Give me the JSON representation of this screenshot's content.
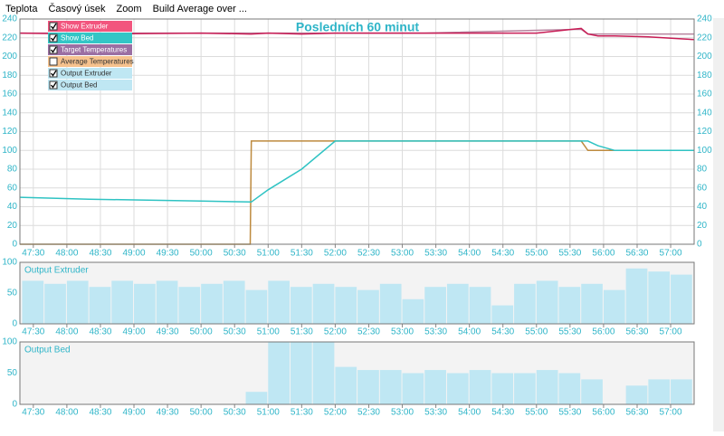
{
  "menu": [
    "Teplota",
    "Časový úsek",
    "Zoom",
    "Build Average over ..."
  ],
  "legend": [
    {
      "label": "Show Extruder",
      "color": "#f2557e",
      "checked": true
    },
    {
      "label": "Show Bed",
      "color": "#33c6c6",
      "checked": true
    },
    {
      "label": "Target Temperatures",
      "color": "#9b6fa3",
      "checked": true
    },
    {
      "label": "Average Temperatures",
      "color": "#f6c28e",
      "checked": false
    },
    {
      "label": "Output Extruder",
      "color": "#bfe7f3",
      "checked": true
    },
    {
      "label": "Output Bed",
      "color": "#bfe7f3",
      "checked": true
    }
  ],
  "chart_data": [
    {
      "type": "line",
      "title": "Posledních 60 minut",
      "x": [
        2838,
        2900,
        3000,
        3044,
        3045,
        3060,
        3090,
        3120,
        3200,
        3300,
        3340,
        3346,
        3355,
        3370,
        3400,
        3441
      ],
      "series": [
        {
          "color": "#b8849f",
          "values": [
            225,
            225,
            225,
            225,
            225,
            225,
            225,
            225,
            225,
            228,
            229,
            224,
            224,
            224,
            224,
            224
          ]
        },
        {
          "color": "#c81c55",
          "values": [
            225,
            224,
            225,
            224,
            224,
            225,
            224,
            225,
            225,
            225,
            230,
            224,
            222,
            222,
            221,
            218
          ]
        },
        {
          "color": "#bd8a3e",
          "values": [
            0,
            0,
            0,
            0,
            110,
            110,
            110,
            110,
            110,
            110,
            110,
            100,
            100,
            100,
            100,
            100
          ]
        },
        {
          "color": "#2fc3c3",
          "values": [
            50,
            48,
            46,
            45,
            45,
            58,
            80,
            110,
            110,
            110,
            110,
            110,
            105,
            100,
            100,
            100
          ]
        }
      ],
      "xlim": [
        2838,
        3441
      ],
      "xticks": [
        {
          "value": 2850,
          "label": "47:30"
        },
        {
          "value": 2880,
          "label": "48:00"
        },
        {
          "value": 2910,
          "label": "48:30"
        },
        {
          "value": 2940,
          "label": "49:00"
        },
        {
          "value": 2970,
          "label": "49:30"
        },
        {
          "value": 3000,
          "label": "50:00"
        },
        {
          "value": 3030,
          "label": "50:30"
        },
        {
          "value": 3060,
          "label": "51:00"
        },
        {
          "value": 3090,
          "label": "51:30"
        },
        {
          "value": 3120,
          "label": "52:00"
        },
        {
          "value": 3150,
          "label": "52:30"
        },
        {
          "value": 3180,
          "label": "53:00"
        },
        {
          "value": 3210,
          "label": "53:30"
        },
        {
          "value": 3240,
          "label": "54:00"
        },
        {
          "value": 3270,
          "label": "54:30"
        },
        {
          "value": 3300,
          "label": "55:00"
        },
        {
          "value": 3330,
          "label": "55:30"
        },
        {
          "value": 3360,
          "label": "56:00"
        },
        {
          "value": 3390,
          "label": "56:30"
        },
        {
          "value": 3420,
          "label": "57:00"
        }
      ],
      "ylim": [
        0,
        240
      ],
      "yticks": [
        0,
        20,
        40,
        60,
        80,
        100,
        120,
        140,
        160,
        180,
        200,
        220,
        240
      ],
      "grid": true
    },
    {
      "type": "bar",
      "title": "Output Extruder",
      "color": "#bfe7f3",
      "x": [
        2840,
        2860,
        2880,
        2900,
        2920,
        2940,
        2960,
        2980,
        3000,
        3020,
        3040,
        3060,
        3080,
        3100,
        3120,
        3140,
        3160,
        3180,
        3200,
        3220,
        3240,
        3260,
        3280,
        3300,
        3320,
        3340,
        3360,
        3380,
        3400,
        3420
      ],
      "values": [
        70,
        65,
        70,
        60,
        70,
        65,
        70,
        60,
        65,
        70,
        55,
        70,
        60,
        65,
        60,
        55,
        65,
        40,
        60,
        65,
        60,
        30,
        65,
        70,
        60,
        65,
        55,
        90,
        85,
        80
      ],
      "xlim": [
        2838,
        3441
      ],
      "ylim": [
        0,
        100
      ],
      "yticks": [
        0,
        50,
        100
      ],
      "xticks": [
        {
          "value": 2850,
          "label": "47:30"
        },
        {
          "value": 2880,
          "label": "48:00"
        },
        {
          "value": 2910,
          "label": "48:30"
        },
        {
          "value": 2940,
          "label": "49:00"
        },
        {
          "value": 2970,
          "label": "49:30"
        },
        {
          "value": 3000,
          "label": "50:00"
        },
        {
          "value": 3030,
          "label": "50:30"
        },
        {
          "value": 3060,
          "label": "51:00"
        },
        {
          "value": 3090,
          "label": "51:30"
        },
        {
          "value": 3120,
          "label": "52:00"
        },
        {
          "value": 3150,
          "label": "52:30"
        },
        {
          "value": 3180,
          "label": "53:00"
        },
        {
          "value": 3210,
          "label": "53:30"
        },
        {
          "value": 3240,
          "label": "54:00"
        },
        {
          "value": 3270,
          "label": "54:30"
        },
        {
          "value": 3300,
          "label": "55:00"
        },
        {
          "value": 3330,
          "label": "55:30"
        },
        {
          "value": 3360,
          "label": "56:00"
        },
        {
          "value": 3390,
          "label": "56:30"
        },
        {
          "value": 3420,
          "label": "57:00"
        }
      ]
    },
    {
      "type": "bar",
      "title": "Output Bed",
      "color": "#bfe7f3",
      "x": [
        2840,
        2860,
        2880,
        2900,
        2920,
        2940,
        2960,
        2980,
        3000,
        3020,
        3040,
        3060,
        3080,
        3100,
        3120,
        3140,
        3160,
        3180,
        3200,
        3220,
        3240,
        3260,
        3280,
        3300,
        3320,
        3340,
        3360,
        3380,
        3400,
        3420
      ],
      "values": [
        0,
        0,
        0,
        0,
        0,
        0,
        0,
        0,
        0,
        0,
        20,
        100,
        100,
        100,
        60,
        55,
        55,
        50,
        55,
        50,
        55,
        50,
        50,
        55,
        50,
        40,
        0,
        30,
        40,
        40
      ],
      "xlim": [
        2838,
        3441
      ],
      "ylim": [
        0,
        100
      ],
      "yticks": [
        0,
        50,
        100
      ],
      "xticks": [
        {
          "value": 2850,
          "label": "47:30"
        },
        {
          "value": 2880,
          "label": "48:00"
        },
        {
          "value": 2910,
          "label": "48:30"
        },
        {
          "value": 2940,
          "label": "49:00"
        },
        {
          "value": 2970,
          "label": "49:30"
        },
        {
          "value": 3000,
          "label": "50:00"
        },
        {
          "value": 3030,
          "label": "50:30"
        },
        {
          "value": 3060,
          "label": "51:00"
        },
        {
          "value": 3090,
          "label": "51:30"
        },
        {
          "value": 3120,
          "label": "52:00"
        },
        {
          "value": 3150,
          "label": "52:30"
        },
        {
          "value": 3180,
          "label": "53:00"
        },
        {
          "value": 3210,
          "label": "53:30"
        },
        {
          "value": 3240,
          "label": "54:00"
        },
        {
          "value": 3270,
          "label": "54:30"
        },
        {
          "value": 3300,
          "label": "55:00"
        },
        {
          "value": 3330,
          "label": "55:30"
        },
        {
          "value": 3360,
          "label": "56:00"
        },
        {
          "value": 3390,
          "label": "56:30"
        },
        {
          "value": 3420,
          "label": "57:00"
        }
      ]
    }
  ]
}
